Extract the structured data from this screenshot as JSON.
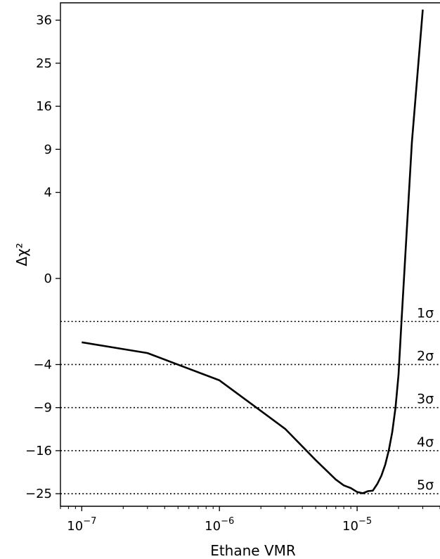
{
  "chart_data": {
    "type": "line",
    "title": "",
    "xlabel": "Ethane VMR",
    "ylabel": "Δχ²",
    "xscale": "log",
    "yscale": "signed-sqrt",
    "xlim": [
      7e-08,
      4e-05
    ],
    "ylim": [
      -28,
      41
    ],
    "grid": false,
    "x_ticks": [
      {
        "value": 1e-07,
        "base": "10",
        "exp": "−7"
      },
      {
        "value": 1e-06,
        "base": "10",
        "exp": "−6"
      },
      {
        "value": 1e-05,
        "base": "10",
        "exp": "−5"
      }
    ],
    "y_ticks": [
      {
        "value": 36,
        "label": "36"
      },
      {
        "value": 25,
        "label": "25"
      },
      {
        "value": 16,
        "label": "16"
      },
      {
        "value": 9,
        "label": "9"
      },
      {
        "value": 4,
        "label": "4"
      },
      {
        "value": 0,
        "label": "0"
      },
      {
        "value": -4,
        "label": "−4"
      },
      {
        "value": -9,
        "label": "−9"
      },
      {
        "value": -16,
        "label": "−16"
      },
      {
        "value": -25,
        "label": "−25"
      }
    ],
    "series": [
      {
        "color": "#000000",
        "x": [
          1e-07,
          3e-07,
          1e-06,
          3e-06,
          5e-06,
          7e-06,
          8e-06,
          9e-06,
          1e-05,
          1.1e-05,
          1.2e-05,
          1.3e-05,
          1.4e-05,
          1.5e-05,
          1.6e-05,
          1.7e-05,
          1.8e-05,
          1.9e-05,
          2e-05,
          2.1e-05,
          2.5e-05,
          3e-05
        ],
        "y": [
          -2.2,
          -3.0,
          -5.6,
          -12.2,
          -17.8,
          -21.8,
          -23.1,
          -23.7,
          -24.6,
          -24.9,
          -24.4,
          -24.3,
          -22.8,
          -21.0,
          -18.7,
          -15.9,
          -12.7,
          -9.0,
          -5.0,
          -1.0,
          10.0,
          39.0
        ]
      }
    ],
    "reference_lines": [
      {
        "y": -1,
        "label": "1σ"
      },
      {
        "y": -4,
        "label": "2σ"
      },
      {
        "y": -9,
        "label": "3σ"
      },
      {
        "y": -16,
        "label": "4σ"
      },
      {
        "y": -25,
        "label": "5σ"
      }
    ]
  }
}
